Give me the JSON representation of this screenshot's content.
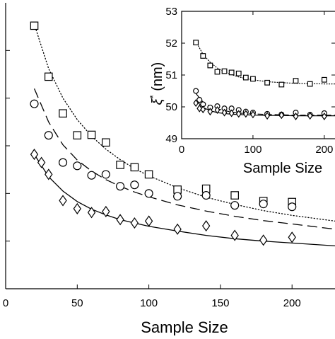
{
  "chart_data": [
    {
      "type": "scatter",
      "title": "",
      "xlabel": "Sample Size",
      "ylabel": "",
      "xlim": [
        0,
        230
      ],
      "ylim": [
        0,
        6
      ],
      "xticks": [
        0,
        50,
        100,
        150,
        200
      ],
      "xtick_labels": [
        "0",
        "50",
        "100",
        "150",
        "200"
      ],
      "yticks": [
        1,
        2,
        3,
        4,
        5
      ],
      "grid": false,
      "legend": "none",
      "series": [
        {
          "marker": "square",
          "fit_line": "dotted",
          "x": [
            20,
            30,
            40,
            50,
            60,
            70,
            80,
            90,
            100,
            120,
            140,
            160,
            180,
            200
          ],
          "y": [
            5.52,
            4.45,
            3.68,
            3.22,
            3.23,
            3.07,
            2.6,
            2.55,
            2.4,
            2.08,
            2.1,
            1.96,
            1.84,
            1.82
          ],
          "fit_y": [
            5.55,
            4.62,
            4.0,
            3.55,
            3.2,
            2.93,
            2.71,
            2.52,
            2.37,
            2.12,
            1.92,
            1.77,
            1.64,
            1.54,
            1.42
          ]
        },
        {
          "marker": "circle",
          "fit_line": "dashed",
          "x": [
            20,
            30,
            40,
            50,
            60,
            70,
            80,
            90,
            100,
            120,
            140,
            160,
            180,
            200
          ],
          "y": [
            3.88,
            3.22,
            2.65,
            2.58,
            2.38,
            2.4,
            2.15,
            2.18,
            2.0,
            1.94,
            1.96,
            1.75,
            1.78,
            1.72
          ],
          "fit_y": [
            4.2,
            3.5,
            3.02,
            2.7,
            2.47,
            2.29,
            2.15,
            2.03,
            1.93,
            1.76,
            1.63,
            1.52,
            1.43,
            1.36,
            1.25
          ]
        },
        {
          "marker": "diamond",
          "fit_line": "solid",
          "x": [
            20,
            25,
            30,
            40,
            50,
            60,
            70,
            80,
            90,
            100,
            120,
            140,
            160,
            180,
            200
          ],
          "y": [
            2.82,
            2.65,
            2.4,
            1.85,
            1.68,
            1.6,
            1.62,
            1.45,
            1.38,
            1.42,
            1.25,
            1.32,
            1.12,
            1.02,
            1.08
          ],
          "fit_y": [
            2.82,
            2.35,
            2.05,
            1.83,
            1.67,
            1.55,
            1.45,
            1.38,
            1.31,
            1.21,
            1.12,
            1.05,
            1.0,
            0.96,
            0.9
          ]
        }
      ],
      "fit_x": [
        20,
        30,
        40,
        50,
        60,
        70,
        80,
        90,
        100,
        120,
        140,
        160,
        180,
        200,
        230
      ]
    },
    {
      "type": "scatter",
      "title": "",
      "xlabel": "Sample Size",
      "ylabel": "ξ* (nm)",
      "ylabel_symbol": "ξ",
      "ylabel_sup": "*",
      "ylabel_unit": "(nm)",
      "xlim": [
        0,
        215
      ],
      "ylim": [
        49,
        53
      ],
      "xticks": [
        0,
        100,
        200
      ],
      "xtick_labels": [
        "0",
        "100",
        "200"
      ],
      "yticks": [
        49,
        50,
        51,
        52,
        53
      ],
      "ytick_labels": [
        "49",
        "50",
        "51",
        "52",
        "53"
      ],
      "grid": false,
      "legend": "none",
      "series": [
        {
          "marker": "square",
          "fit_line": "dotted",
          "x": [
            20,
            30,
            40,
            50,
            60,
            70,
            80,
            90,
            100,
            120,
            140,
            160,
            180,
            200
          ],
          "y": [
            52.02,
            51.6,
            51.3,
            51.1,
            51.12,
            51.08,
            51.05,
            50.92,
            50.88,
            50.76,
            50.7,
            50.82,
            50.72,
            50.85
          ],
          "fit_y": [
            52.05,
            51.65,
            51.4,
            51.22,
            51.1,
            51.01,
            50.94,
            50.89,
            50.85,
            50.79,
            50.76,
            50.74,
            50.73,
            50.72,
            50.72
          ]
        },
        {
          "marker": "circle",
          "fit_line": "dashed",
          "x": [
            20,
            25,
            30,
            40,
            50,
            60,
            70,
            80,
            90,
            100,
            120,
            140,
            160,
            180,
            200
          ],
          "y": [
            50.5,
            50.22,
            50.08,
            49.98,
            50.02,
            49.95,
            49.95,
            49.9,
            49.85,
            49.82,
            49.78,
            49.76,
            49.82,
            49.75,
            49.8
          ],
          "fit_y": [
            50.42,
            50.15,
            50.02,
            49.94,
            49.88,
            49.84,
            49.81,
            49.79,
            49.78,
            49.76,
            49.75,
            49.74,
            49.74,
            49.74,
            49.74
          ]
        },
        {
          "marker": "diamond",
          "fit_line": "solid",
          "x": [
            20,
            25,
            30,
            40,
            50,
            60,
            70,
            80,
            90,
            100,
            120,
            140,
            160,
            180,
            200
          ],
          "y": [
            50.12,
            49.95,
            49.92,
            49.85,
            49.9,
            49.82,
            49.8,
            49.78,
            49.78,
            49.76,
            49.72,
            49.74,
            49.7,
            49.72,
            49.7
          ],
          "fit_y": [
            50.2,
            49.98,
            49.88,
            49.82,
            49.79,
            49.77,
            49.76,
            49.75,
            49.74,
            49.73,
            49.73,
            49.72,
            49.72,
            49.72,
            49.72
          ]
        }
      ],
      "fit_x": [
        20,
        30,
        40,
        50,
        60,
        70,
        80,
        90,
        100,
        120,
        140,
        160,
        180,
        200,
        215
      ]
    }
  ]
}
